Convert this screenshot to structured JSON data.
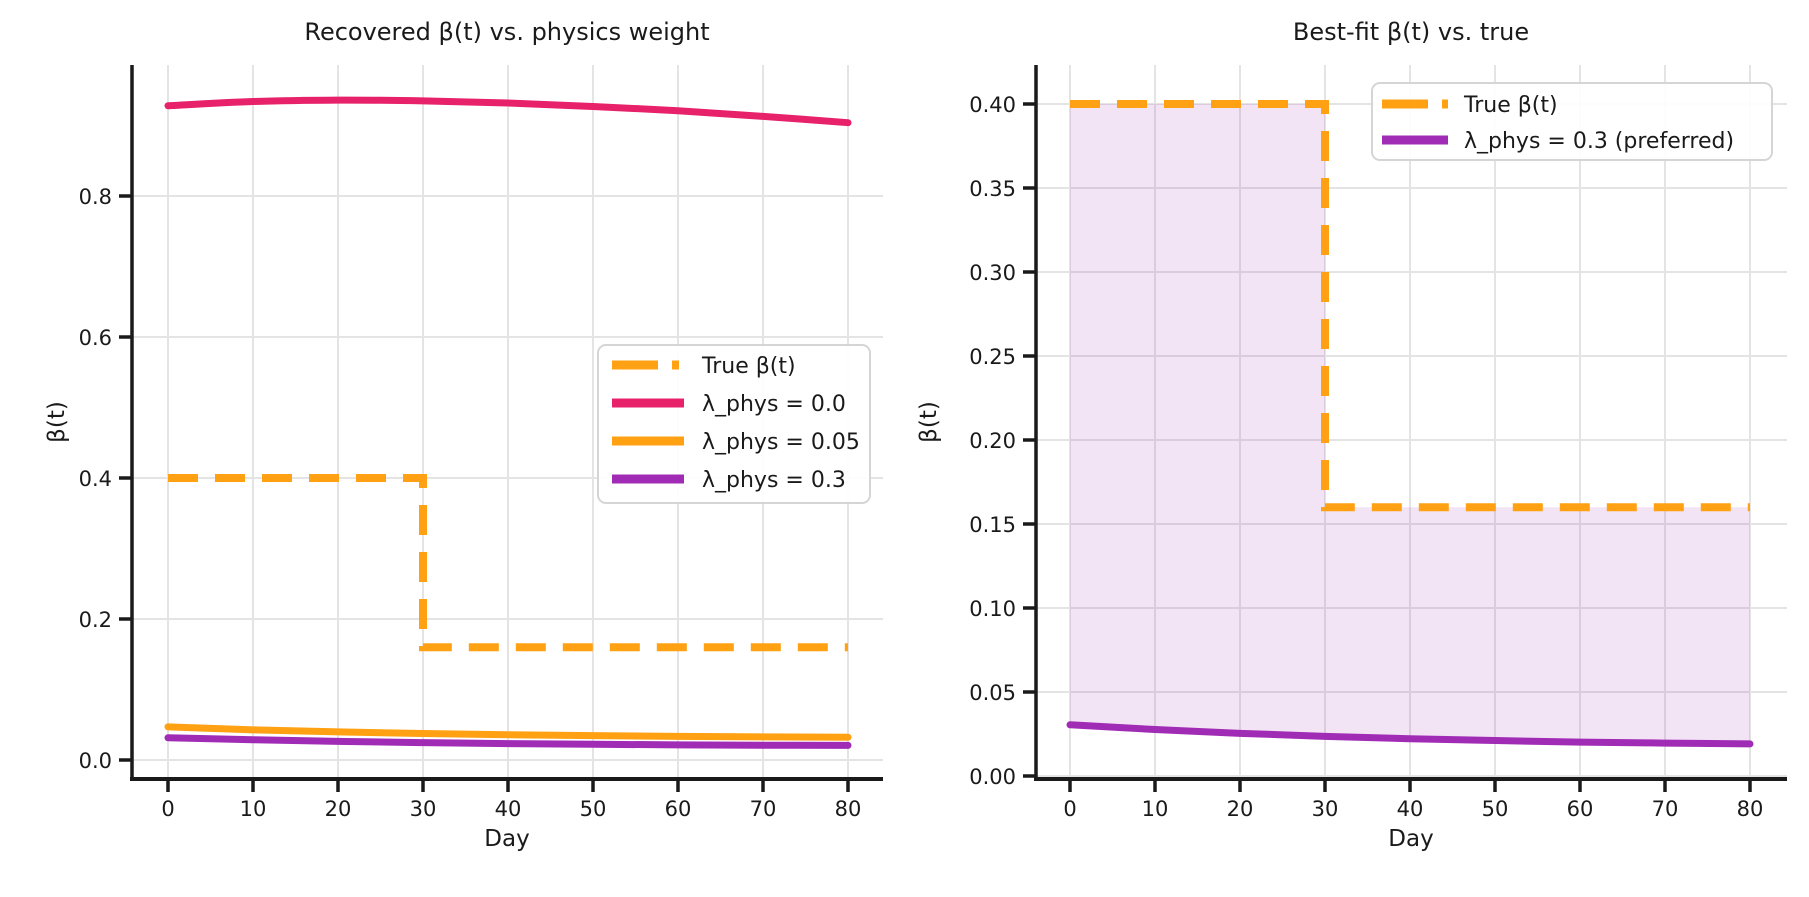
{
  "figure": {
    "background": "#ffffff",
    "text_color": "#1a1a1a",
    "grid_color": "#e4e4e4",
    "spine_color": "#1a1a1a"
  },
  "chart_data": [
    {
      "type": "line",
      "title": "Recovered β(t) vs. physics weight",
      "xlabel": "Day",
      "ylabel": "β(t)",
      "xlim": [
        -4.2,
        84.2
      ],
      "ylim": [
        -0.027,
        0.986
      ],
      "grid": true,
      "legend_position": "center right",
      "xtick_values": [
        0,
        10,
        20,
        30,
        40,
        50,
        60,
        70,
        80
      ],
      "xtick_labels": [
        "0",
        "10",
        "20",
        "30",
        "40",
        "50",
        "60",
        "70",
        "80"
      ],
      "ytick_values": [
        0.0,
        0.2,
        0.4,
        0.6,
        0.8
      ],
      "ytick_labels": [
        "0.0",
        "0.2",
        "0.4",
        "0.6",
        "0.8"
      ],
      "series": [
        {
          "name": "True β(t)",
          "color": "#FFA113",
          "style": "dashed",
          "width": 8,
          "smooth": false,
          "x": [
            0,
            30,
            30,
            80
          ],
          "y": [
            0.4,
            0.4,
            0.16,
            0.16
          ]
        },
        {
          "name": "λ_phys = 0.0",
          "color": "#E8216B",
          "style": "solid",
          "width": 7,
          "smooth": true,
          "x": [
            0,
            10,
            20,
            30,
            40,
            50,
            60,
            70,
            80
          ],
          "y": [
            0.928,
            0.934,
            0.936,
            0.935,
            0.932,
            0.927,
            0.921,
            0.913,
            0.904
          ]
        },
        {
          "name": "λ_phys = 0.05",
          "color": "#FFA113",
          "style": "solid",
          "width": 7,
          "smooth": true,
          "x": [
            0,
            10,
            20,
            30,
            40,
            50,
            60,
            70,
            80
          ],
          "y": [
            0.047,
            0.0428,
            0.0399,
            0.0376,
            0.0358,
            0.0345,
            0.0335,
            0.0328,
            0.0323
          ]
        },
        {
          "name": "λ_phys = 0.3",
          "color": "#A02CB5",
          "style": "solid",
          "width": 7,
          "smooth": true,
          "x": [
            0,
            10,
            20,
            30,
            40,
            50,
            60,
            70,
            80
          ],
          "y": [
            0.0315,
            0.0287,
            0.0264,
            0.0247,
            0.0233,
            0.0223,
            0.0215,
            0.021,
            0.0207
          ]
        }
      ]
    },
    {
      "type": "line",
      "title": "Best-fit β(t) vs. true",
      "xlabel": "Day",
      "ylabel": "β(t)",
      "xlim": [
        -4.2,
        84.2
      ],
      "ylim": [
        -0.002,
        0.419
      ],
      "grid": true,
      "legend_position": "upper right",
      "xtick_values": [
        0,
        10,
        20,
        30,
        40,
        50,
        60,
        70,
        80
      ],
      "xtick_labels": [
        "0",
        "10",
        "20",
        "30",
        "40",
        "50",
        "60",
        "70",
        "80"
      ],
      "ytick_values": [
        0.0,
        0.05,
        0.1,
        0.15,
        0.2,
        0.25,
        0.3,
        0.35,
        0.4
      ],
      "ytick_labels": [
        "0.00",
        "0.05",
        "0.10",
        "0.15",
        "0.20",
        "0.25",
        "0.30",
        "0.35",
        "0.40"
      ],
      "fill_between": {
        "upper_series": "True β(t)",
        "lower_series": "λ_phys = 0.3 (preferred)",
        "color": "rgba(160,44,181,0.13)"
      },
      "series": [
        {
          "name": "True β(t)",
          "color": "#FFA113",
          "style": "dashed",
          "width": 8,
          "smooth": false,
          "x": [
            0,
            30,
            30,
            80
          ],
          "y": [
            0.4,
            0.4,
            0.16,
            0.16
          ]
        },
        {
          "name": "λ_phys = 0.3 (preferred)",
          "color": "#A02CB5",
          "style": "solid",
          "width": 7,
          "smooth": true,
          "x": [
            0,
            10,
            20,
            30,
            40,
            50,
            60,
            70,
            80
          ],
          "y": [
            0.0305,
            0.0277,
            0.0254,
            0.0236,
            0.0222,
            0.0211,
            0.0202,
            0.0196,
            0.0191
          ]
        }
      ]
    }
  ]
}
